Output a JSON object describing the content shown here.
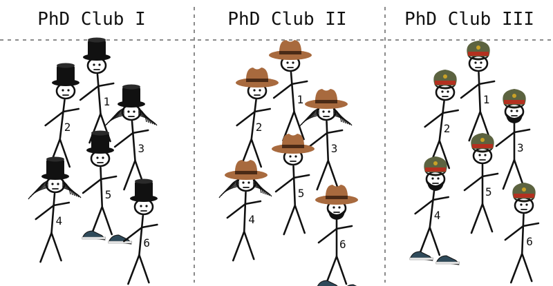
{
  "clubs": [
    {
      "title": "PhD Club I",
      "hat": "top-hat",
      "members": [
        {
          "label": "1",
          "hair": false,
          "beard": false,
          "sneakers": false
        },
        {
          "label": "2",
          "hair": false,
          "beard": false,
          "sneakers": false
        },
        {
          "label": "3",
          "hair": true,
          "beard": false,
          "sneakers": false
        },
        {
          "label": "4",
          "hair": true,
          "beard": false,
          "sneakers": false
        },
        {
          "label": "5",
          "hair": false,
          "beard": false,
          "sneakers": true
        },
        {
          "label": "6",
          "hair": false,
          "beard": false,
          "sneakers": false
        }
      ]
    },
    {
      "title": "PhD Club II",
      "hat": "fedora",
      "members": [
        {
          "label": "1",
          "hair": false,
          "beard": false,
          "sneakers": false
        },
        {
          "label": "2",
          "hair": false,
          "beard": false,
          "sneakers": false
        },
        {
          "label": "3",
          "hair": true,
          "beard": false,
          "sneakers": false
        },
        {
          "label": "4",
          "hair": true,
          "beard": false,
          "sneakers": false
        },
        {
          "label": "5",
          "hair": false,
          "beard": false,
          "sneakers": false
        },
        {
          "label": "6",
          "hair": false,
          "beard": true,
          "sneakers": true
        }
      ]
    },
    {
      "title": "PhD Club III",
      "hat": "military-cap",
      "members": [
        {
          "label": "1",
          "hair": false,
          "beard": false,
          "sneakers": false
        },
        {
          "label": "2",
          "hair": false,
          "beard": false,
          "sneakers": false
        },
        {
          "label": "3",
          "hair": false,
          "beard": true,
          "sneakers": false
        },
        {
          "label": "4",
          "hair": false,
          "beard": true,
          "sneakers": true
        },
        {
          "label": "5",
          "hair": false,
          "beard": false,
          "sneakers": false
        },
        {
          "label": "6",
          "hair": false,
          "beard": false,
          "sneakers": false
        }
      ]
    }
  ],
  "colors": {
    "ink": "#111111",
    "divider": "#8a8a8a",
    "fedora": "#a86a3e",
    "fedora_band": "#4a2a16",
    "cap": "#5c6340",
    "cap_band": "#b3301f",
    "cap_visor": "#1a1a14",
    "sneaker": "#2f4a5a"
  }
}
